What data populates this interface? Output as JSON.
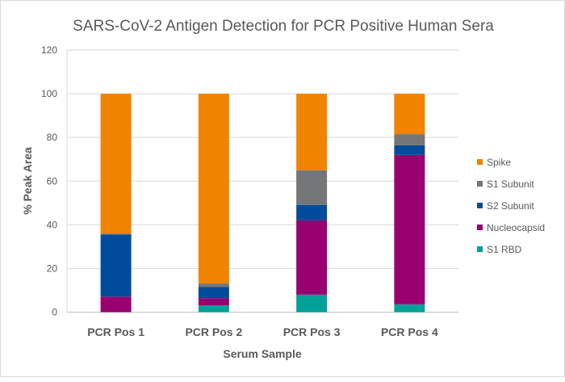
{
  "chart_data": {
    "type": "stacked-bar",
    "title": "SARS-CoV-2 Antigen Detection for PCR Positive Human Sera",
    "xlabel": "Serum Sample",
    "ylabel": "% Peak Area",
    "ylim": [
      0,
      120
    ],
    "yticks": [
      0,
      20,
      40,
      60,
      80,
      100,
      120
    ],
    "grid": true,
    "legend_position": "right",
    "categories": [
      "PCR Pos 1",
      "PCR Pos 2",
      "PCR Pos 3",
      "PCR Pos 4"
    ],
    "series": [
      {
        "name": "S1 RBD",
        "color": "#00A199",
        "values": [
          0,
          3.1,
          8.0,
          3.6
        ]
      },
      {
        "name": "Nucleocapsid",
        "color": "#990070",
        "values": [
          7.1,
          3.3,
          34.0,
          68.4
        ]
      },
      {
        "name": "S2 Subunit",
        "color": "#004C9B",
        "values": [
          28.5,
          5.2,
          7.1,
          4.4
        ]
      },
      {
        "name": "S1 Subunit",
        "color": "#747678",
        "values": [
          0.4,
          1.5,
          15.9,
          5.1
        ]
      },
      {
        "name": "Spike",
        "color": "#F08300",
        "values": [
          64.0,
          86.9,
          35.0,
          18.5
        ]
      }
    ],
    "legend_order": [
      "Spike",
      "S1 Subunit",
      "S2 Subunit",
      "Nucleocapsid",
      "S1 RBD"
    ]
  }
}
